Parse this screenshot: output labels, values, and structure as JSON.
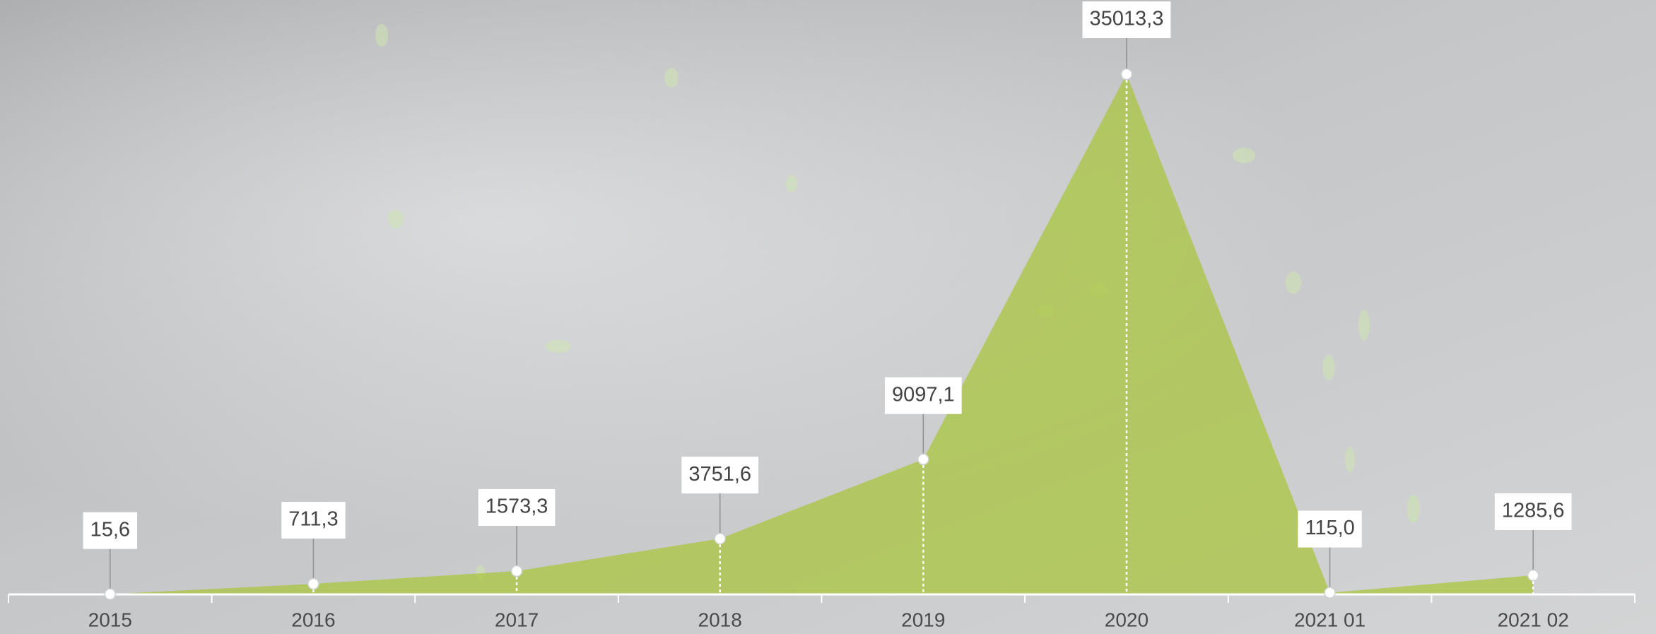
{
  "chart_data": {
    "type": "area",
    "categories": [
      "2015",
      "2016",
      "2017",
      "2018",
      "2019",
      "2020",
      "2021 01",
      "2021 02"
    ],
    "values": [
      15.6,
      711.3,
      1573.3,
      3751.6,
      9097.1,
      35013.3,
      115.0,
      1285.6
    ],
    "value_labels": [
      "15,6",
      "711,3",
      "1573,3",
      "3751,6",
      "9097,1",
      "35013,3",
      "115,0",
      "1285,6"
    ],
    "color": "#a9c63f"
  }
}
